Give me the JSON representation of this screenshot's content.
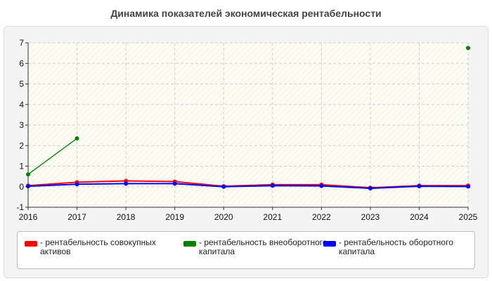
{
  "chart_data": {
    "type": "line",
    "title": "Динамика показателей экономическая рентабельности",
    "xlabel": "",
    "ylabel": "",
    "x": [
      "2016",
      "2017",
      "2018",
      "2019",
      "2020",
      "2021",
      "2022",
      "2023",
      "2024",
      "2025"
    ],
    "ylim": [
      -1,
      7
    ],
    "yticks": [
      "-1",
      "0",
      "1",
      "2",
      "3",
      "4",
      "5",
      "6",
      "7"
    ],
    "grid": true,
    "legend_position": "bottom",
    "series": [
      {
        "name": "- рентабельность совокупных активов",
        "color": "#ff0000",
        "values": [
          0.05,
          0.22,
          0.28,
          0.25,
          0.02,
          0.1,
          0.1,
          -0.05,
          0.05,
          0.05
        ]
      },
      {
        "name": "- рентабельность внеоборотного капитала",
        "color": "#008000",
        "values": [
          0.6,
          2.35,
          null,
          null,
          null,
          null,
          null,
          null,
          null,
          6.75
        ]
      },
      {
        "name": "- рентабельность оборотного капитала",
        "color": "#0000ff",
        "values": [
          0.02,
          0.12,
          0.15,
          0.15,
          0.0,
          0.05,
          0.04,
          -0.08,
          0.02,
          0.01
        ]
      }
    ]
  }
}
